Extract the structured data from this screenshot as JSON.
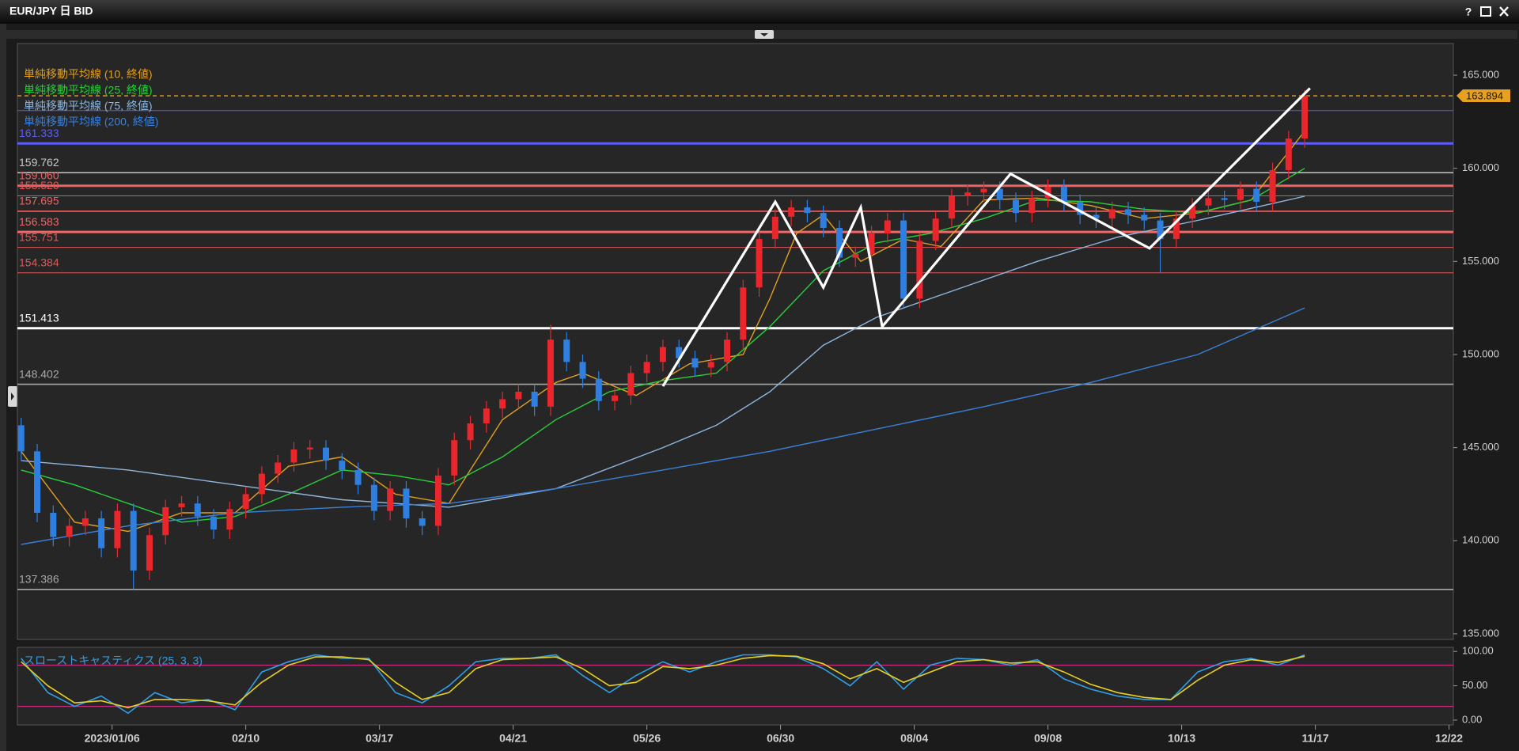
{
  "window": {
    "title": "EUR/JPY 日 BID",
    "help": "?"
  },
  "chart_data": [
    {
      "type": "candlestick",
      "up_color": "#e8262b",
      "down_color": "#2f7fe0",
      "x": [
        0,
        3,
        6,
        9,
        12,
        15,
        18,
        21,
        24,
        27,
        30,
        33,
        36,
        39,
        42,
        45,
        48,
        51,
        54,
        57,
        60,
        63,
        66,
        69,
        72,
        75,
        78,
        81,
        84,
        87,
        90,
        93,
        96,
        99,
        102,
        105,
        108,
        111,
        114,
        117,
        120,
        123,
        126,
        129,
        132,
        135,
        138,
        141,
        144,
        147,
        150,
        153,
        156,
        159,
        162,
        165,
        168,
        171,
        174,
        177,
        180,
        183,
        186,
        189,
        192,
        195,
        198,
        201,
        204,
        207,
        210,
        213,
        216,
        219,
        222,
        225,
        228,
        231,
        234,
        237,
        240
      ],
      "open": [
        146.2,
        144.8,
        141.5,
        140.2,
        140.8,
        141.2,
        139.6,
        141.6,
        138.4,
        140.3,
        141.8,
        142.0,
        141.3,
        140.6,
        141.7,
        142.5,
        143.6,
        144.2,
        144.9,
        145.0,
        144.3,
        143.8,
        143.0,
        141.6,
        142.8,
        141.2,
        140.8,
        143.5,
        145.4,
        146.3,
        147.1,
        147.6,
        148.0,
        147.2,
        150.8,
        149.6,
        148.7,
        147.5,
        147.8,
        149.0,
        149.6,
        150.4,
        149.8,
        149.3,
        149.6,
        150.8,
        153.6,
        156.2,
        157.4,
        157.9,
        157.6,
        156.8,
        155.2,
        155.4,
        156.5,
        157.2,
        153.0,
        156.1,
        157.3,
        158.5,
        158.7,
        158.9,
        158.3,
        157.6,
        158.4,
        159.0,
        158.2,
        157.5,
        157.3,
        157.8,
        157.5,
        157.2,
        156.2,
        157.3,
        158.0,
        158.4,
        158.3,
        158.9,
        158.2,
        159.9,
        161.6
      ],
      "high": [
        146.6,
        145.2,
        141.9,
        141.2,
        141.6,
        141.6,
        142.0,
        142.0,
        140.7,
        142.2,
        142.4,
        142.4,
        141.7,
        142.1,
        142.9,
        144.0,
        144.6,
        145.3,
        145.4,
        145.4,
        144.7,
        144.2,
        143.4,
        143.2,
        143.2,
        141.6,
        143.9,
        145.8,
        146.7,
        147.5,
        148.0,
        148.4,
        148.4,
        151.6,
        151.2,
        150.0,
        149.1,
        148.2,
        149.4,
        150.0,
        150.8,
        150.8,
        150.2,
        150.0,
        151.2,
        154.0,
        156.6,
        157.8,
        158.3,
        158.3,
        158.0,
        157.2,
        155.8,
        156.9,
        157.6,
        157.6,
        156.5,
        157.7,
        158.9,
        159.1,
        159.3,
        159.3,
        158.7,
        158.8,
        159.4,
        159.4,
        158.6,
        157.9,
        158.2,
        158.2,
        157.9,
        157.6,
        157.7,
        158.4,
        158.8,
        158.8,
        159.3,
        159.3,
        160.3,
        162.0,
        164.2
      ],
      "low": [
        144.3,
        141.0,
        139.7,
        139.7,
        140.3,
        139.1,
        139.1,
        137.4,
        137.9,
        139.8,
        141.3,
        140.8,
        140.1,
        140.1,
        141.2,
        142.0,
        143.1,
        143.7,
        144.4,
        143.8,
        143.3,
        142.5,
        141.1,
        141.1,
        140.7,
        140.3,
        140.3,
        143.0,
        144.9,
        145.8,
        146.6,
        147.1,
        146.7,
        146.7,
        149.1,
        148.2,
        147.0,
        147.0,
        147.3,
        148.5,
        149.1,
        149.3,
        148.8,
        148.8,
        149.1,
        150.3,
        153.1,
        155.7,
        156.9,
        157.1,
        156.3,
        154.7,
        154.7,
        154.9,
        156.0,
        152.5,
        152.5,
        155.6,
        156.8,
        158.0,
        158.2,
        157.8,
        157.1,
        157.1,
        157.9,
        157.7,
        157.0,
        156.8,
        156.8,
        157.0,
        156.7,
        154.4,
        155.7,
        156.8,
        157.5,
        157.8,
        157.8,
        157.7,
        157.7,
        159.4,
        161.1
      ],
      "close": [
        144.8,
        141.5,
        140.2,
        140.8,
        141.2,
        139.6,
        141.6,
        138.4,
        140.3,
        141.8,
        142.0,
        141.3,
        140.6,
        141.7,
        142.5,
        143.6,
        144.2,
        144.9,
        145.0,
        144.3,
        143.8,
        143.0,
        141.6,
        142.8,
        141.2,
        140.8,
        143.5,
        145.4,
        146.3,
        147.1,
        147.6,
        148.0,
        147.2,
        150.8,
        149.6,
        148.7,
        147.5,
        147.8,
        149.0,
        149.6,
        150.4,
        149.8,
        149.3,
        149.6,
        150.8,
        153.6,
        156.2,
        157.4,
        157.9,
        157.6,
        156.8,
        155.2,
        155.4,
        156.5,
        157.2,
        153.0,
        156.1,
        157.3,
        158.5,
        158.7,
        158.9,
        158.3,
        157.6,
        158.4,
        159.0,
        158.2,
        157.5,
        157.3,
        157.8,
        157.5,
        157.2,
        156.2,
        157.3,
        158.0,
        158.4,
        158.3,
        158.9,
        158.2,
        159.9,
        161.6,
        163.9
      ],
      "series": [
        {
          "name": "単純移動平均線 (10, 終値)",
          "color": "#e0a020",
          "x": [
            0,
            10,
            20,
            30,
            40,
            50,
            60,
            70,
            80,
            90,
            100,
            105,
            115,
            125,
            135,
            140,
            145,
            150,
            157,
            165,
            172,
            180,
            190,
            200,
            210,
            220,
            230,
            240
          ],
          "values": [
            144.8,
            141.0,
            140.5,
            141.5,
            141.5,
            144.0,
            144.5,
            142.5,
            142.0,
            146.5,
            148.5,
            149.0,
            147.8,
            149.5,
            150.0,
            153.0,
            156.5,
            157.5,
            155.0,
            156.2,
            155.8,
            158.3,
            158.4,
            158.0,
            157.3,
            157.6,
            158.3,
            162.0
          ]
        },
        {
          "name": "単純移動平均線 (25, 終値)",
          "color": "#27d03a",
          "x": [
            0,
            10,
            20,
            30,
            40,
            50,
            60,
            70,
            80,
            90,
            100,
            110,
            120,
            130,
            140,
            150,
            160,
            170,
            180,
            190,
            200,
            210,
            220,
            230,
            240
          ],
          "values": [
            143.8,
            143.0,
            142.0,
            141.0,
            141.3,
            142.5,
            143.8,
            143.5,
            143.0,
            144.5,
            146.5,
            148.0,
            148.6,
            149.0,
            151.5,
            154.5,
            156.0,
            156.5,
            157.3,
            158.3,
            158.2,
            157.8,
            157.6,
            158.3,
            160.0
          ]
        },
        {
          "name": "単純移動平均線 (75, 終値)",
          "color": "#8fb6de",
          "x": [
            0,
            20,
            40,
            60,
            80,
            100,
            120,
            130,
            140,
            150,
            160,
            175,
            190,
            205,
            220,
            240
          ],
          "values": [
            144.3,
            143.8,
            143.0,
            142.2,
            141.8,
            142.8,
            145.0,
            146.2,
            148.0,
            150.5,
            152.0,
            153.5,
            155.0,
            156.3,
            157.2,
            158.5
          ]
        },
        {
          "name": "単純移動平均線 (200, 終値)",
          "color": "#3a80d8",
          "x": [
            0,
            20,
            40,
            60,
            80,
            100,
            120,
            140,
            160,
            180,
            200,
            220,
            240
          ],
          "values": [
            139.8,
            140.8,
            141.5,
            141.8,
            142.0,
            142.8,
            143.8,
            144.8,
            146.0,
            147.2,
            148.5,
            150.0,
            152.5
          ]
        }
      ],
      "levels": [
        {
          "value": 163.894,
          "label": "163.894",
          "color": "#e8a020",
          "style": "dashed"
        },
        {
          "value": 163.1,
          "color": "#5a5ae0",
          "style": "thin"
        },
        {
          "value": 161.333,
          "label": "161.333",
          "color": "#5b5bff",
          "style": "thick"
        },
        {
          "value": 159.762,
          "label": "159.762",
          "color": "#c8c8c8",
          "style": "normal"
        },
        {
          "value": 159.06,
          "label": "159.060",
          "color": "#f06060",
          "style": "thick"
        },
        {
          "value": 158.52,
          "label": "158.520",
          "color": "#e05858",
          "style": "thin"
        },
        {
          "value": 157.695,
          "label": "157.695",
          "color": "#f06060",
          "style": "normal"
        },
        {
          "value": 156.583,
          "label": "156.583",
          "color": "#f06868",
          "style": "thick"
        },
        {
          "value": 155.751,
          "label": "155.751",
          "color": "#e05858",
          "style": "thin"
        },
        {
          "value": 154.384,
          "label": "154.384",
          "color": "#e05858",
          "style": "thin"
        },
        {
          "value": 151.413,
          "label": "151.413",
          "color": "#ffffff",
          "style": "thick"
        },
        {
          "value": 148.402,
          "label": "148.402",
          "color": "#a8a8a8",
          "style": "normal"
        },
        {
          "value": 137.386,
          "label": "137.386",
          "color": "#a8a8a8",
          "style": "normal"
        }
      ],
      "trendline": {
        "color": "#ffffff",
        "x": [
          120,
          141,
          150,
          157,
          161,
          185,
          211,
          241
        ],
        "values": [
          148.3,
          158.2,
          153.6,
          157.9,
          151.5,
          159.7,
          155.7,
          164.3
        ]
      },
      "xlim": [
        -0.7,
        267.8
      ],
      "ylim": [
        134.7,
        166.7
      ],
      "yticks": [
        {
          "value": 135,
          "label": "135.000"
        },
        {
          "value": 140,
          "label": "140.000"
        },
        {
          "value": 145,
          "label": "145.000"
        },
        {
          "value": 150,
          "label": "150.000"
        },
        {
          "value": 155,
          "label": "155.000"
        },
        {
          "value": 160,
          "label": "160.000"
        },
        {
          "value": 165,
          "label": "165.000"
        }
      ]
    },
    {
      "type": "line",
      "title": "スローストキャスティクス (25, 3, 3)",
      "series": [
        {
          "color": "#2f9fe8",
          "x": [
            0,
            5,
            10,
            15,
            20,
            25,
            30,
            35,
            40,
            45,
            50,
            55,
            60,
            65,
            70,
            75,
            80,
            85,
            90,
            95,
            100,
            105,
            110,
            115,
            120,
            125,
            130,
            135,
            140,
            145,
            150,
            155,
            160,
            165,
            170,
            175,
            180,
            185,
            190,
            195,
            200,
            205,
            210,
            215,
            220,
            225,
            230,
            235,
            240
          ],
          "values": [
            90,
            40,
            20,
            35,
            10,
            40,
            25,
            30,
            15,
            70,
            85,
            95,
            90,
            90,
            40,
            25,
            50,
            85,
            90,
            90,
            95,
            65,
            40,
            65,
            85,
            70,
            85,
            95,
            95,
            92,
            75,
            50,
            85,
            45,
            80,
            90,
            88,
            80,
            88,
            60,
            45,
            35,
            30,
            30,
            70,
            85,
            90,
            80,
            95
          ]
        },
        {
          "color": "#e8d020",
          "x": [
            0,
            5,
            10,
            15,
            20,
            25,
            30,
            35,
            40,
            45,
            50,
            55,
            60,
            65,
            70,
            75,
            80,
            85,
            90,
            95,
            100,
            105,
            110,
            115,
            120,
            125,
            130,
            135,
            140,
            145,
            150,
            155,
            160,
            165,
            170,
            175,
            180,
            185,
            190,
            195,
            200,
            205,
            210,
            215,
            220,
            225,
            230,
            235,
            240
          ],
          "values": [
            85,
            50,
            25,
            28,
            18,
            30,
            30,
            28,
            22,
            55,
            80,
            92,
            92,
            88,
            55,
            30,
            40,
            75,
            88,
            90,
            92,
            75,
            50,
            55,
            78,
            75,
            80,
            90,
            94,
            93,
            82,
            60,
            75,
            55,
            70,
            85,
            88,
            83,
            85,
            70,
            52,
            40,
            33,
            30,
            58,
            80,
            88,
            84,
            93
          ]
        }
      ],
      "levels": [
        {
          "value": 80,
          "color": "#c8287a"
        },
        {
          "value": 20,
          "color": "#c8287a"
        }
      ],
      "xlim": [
        -0.7,
        267.8
      ],
      "ylim": [
        -7,
        106
      ],
      "yticks": [
        {
          "value": 0,
          "label": "0.00"
        },
        {
          "value": 50,
          "label": "50.00"
        },
        {
          "value": 100,
          "label": "100.00"
        }
      ],
      "xticks": [
        {
          "value": 17,
          "label": "2023/01/06"
        },
        {
          "value": 42,
          "label": "02/10"
        },
        {
          "value": 67,
          "label": "03/17"
        },
        {
          "value": 92,
          "label": "04/21"
        },
        {
          "value": 117,
          "label": "05/26"
        },
        {
          "value": 142,
          "label": "06/30"
        },
        {
          "value": 167,
          "label": "08/04"
        },
        {
          "value": 192,
          "label": "09/08"
        },
        {
          "value": 217,
          "label": "10/13"
        },
        {
          "value": 242,
          "label": "11/17"
        },
        {
          "value": 267,
          "label": "12/22"
        }
      ]
    }
  ]
}
